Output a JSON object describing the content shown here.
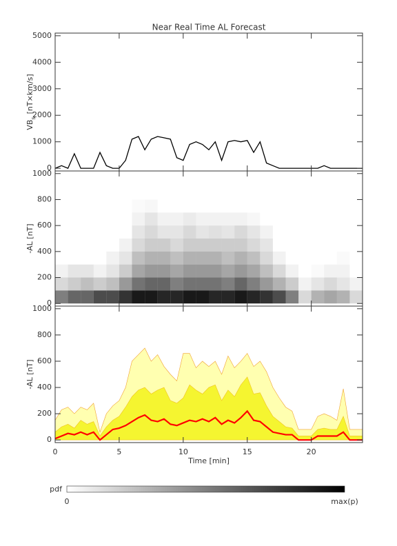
{
  "chart_data": [
    {
      "type": "line",
      "title": "Near Real Time AL Forecast",
      "ylabel": "VB",
      "ylabel_sub": "s",
      "ylabel_unit": "[nT×km/s]",
      "xlim": [
        0,
        24
      ],
      "xticks": [
        0,
        5,
        10,
        15,
        20
      ],
      "xtick_labels": false,
      "ylim": [
        -100,
        5100
      ],
      "yticks": [
        0,
        1000,
        2000,
        3000,
        4000,
        5000
      ],
      "x": [
        0,
        0.5,
        1,
        1.5,
        2,
        2.5,
        3,
        3.5,
        4,
        4.5,
        5,
        5.5,
        6,
        6.5,
        7,
        7.5,
        8,
        8.5,
        9,
        9.5,
        10,
        10.5,
        11,
        11.5,
        12,
        12.5,
        13,
        13.5,
        14,
        14.5,
        15,
        15.5,
        16,
        16.5,
        17,
        17.5,
        18,
        18.5,
        19,
        19.5,
        20,
        20.5,
        21,
        21.5,
        22,
        22.5,
        23,
        23.5,
        24
      ],
      "series": [
        {
          "color": "#000000",
          "values": [
            0,
            100,
            0,
            550,
            0,
            0,
            0,
            600,
            100,
            0,
            0,
            300,
            1100,
            1200,
            700,
            1100,
            1200,
            1150,
            1100,
            400,
            300,
            900,
            1000,
            900,
            700,
            1000,
            300,
            1000,
            1050,
            1000,
            1050,
            600,
            1000,
            200,
            100,
            0,
            0,
            0,
            0,
            0,
            0,
            0,
            100,
            0,
            0,
            0,
            0,
            0,
            0
          ]
        }
      ]
    },
    {
      "type": "heatmap",
      "ylabel": "-AL [nT]",
      "color": "#000000",
      "xlim": [
        0,
        24
      ],
      "xticks": [
        0,
        5,
        10,
        15,
        20
      ],
      "xtick_labels": false,
      "ylim": [
        -20,
        1020
      ],
      "yticks": [
        0,
        200,
        400,
        600,
        800,
        1000
      ],
      "xbins": [
        0,
        1,
        2,
        3,
        4,
        5,
        6,
        7,
        8,
        9,
        10,
        11,
        12,
        13,
        14,
        15,
        16,
        17,
        18,
        19,
        20,
        21,
        22,
        23,
        24
      ],
      "ybins": [
        0,
        100,
        200,
        300,
        400,
        500,
        600,
        700,
        800
      ],
      "z": [
        [
          0.5,
          0.15,
          0.05,
          0,
          0,
          0,
          0,
          0
        ],
        [
          0.6,
          0.2,
          0.1,
          0,
          0,
          0,
          0,
          0
        ],
        [
          0.6,
          0.25,
          0.1,
          0,
          0,
          0,
          0,
          0
        ],
        [
          0.7,
          0.2,
          0.05,
          0,
          0,
          0,
          0,
          0
        ],
        [
          0.7,
          0.25,
          0.1,
          0.05,
          0,
          0,
          0,
          0
        ],
        [
          0.8,
          0.4,
          0.2,
          0.1,
          0.05,
          0,
          0,
          0
        ],
        [
          0.9,
          0.55,
          0.35,
          0.25,
          0.15,
          0.1,
          0.05,
          0.02
        ],
        [
          0.9,
          0.6,
          0.4,
          0.3,
          0.2,
          0.15,
          0.1,
          0.03
        ],
        [
          0.85,
          0.6,
          0.4,
          0.3,
          0.2,
          0.1,
          0.05,
          0
        ],
        [
          0.85,
          0.5,
          0.35,
          0.25,
          0.15,
          0.1,
          0.05,
          0
        ],
        [
          0.9,
          0.55,
          0.4,
          0.3,
          0.2,
          0.15,
          0.08,
          0
        ],
        [
          0.9,
          0.55,
          0.4,
          0.3,
          0.2,
          0.1,
          0.05,
          0
        ],
        [
          0.85,
          0.55,
          0.4,
          0.3,
          0.2,
          0.12,
          0.05,
          0
        ],
        [
          0.85,
          0.5,
          0.35,
          0.25,
          0.2,
          0.1,
          0.05,
          0
        ],
        [
          0.9,
          0.6,
          0.4,
          0.3,
          0.2,
          0.15,
          0.05,
          0
        ],
        [
          0.85,
          0.5,
          0.35,
          0.25,
          0.15,
          0.1,
          0.03,
          0
        ],
        [
          0.8,
          0.4,
          0.25,
          0.15,
          0.1,
          0.05,
          0,
          0
        ],
        [
          0.7,
          0.3,
          0.15,
          0.05,
          0,
          0,
          0,
          0
        ],
        [
          0.5,
          0.2,
          0.05,
          0,
          0,
          0,
          0,
          0
        ],
        [
          0.15,
          0.05,
          0,
          0,
          0,
          0,
          0,
          0
        ],
        [
          0.3,
          0.1,
          0.02,
          0,
          0,
          0,
          0,
          0
        ],
        [
          0.35,
          0.15,
          0.05,
          0,
          0,
          0,
          0,
          0
        ],
        [
          0.3,
          0.1,
          0.05,
          0.02,
          0,
          0,
          0,
          0
        ],
        [
          0.15,
          0.05,
          0,
          0,
          0,
          0,
          0,
          0
        ]
      ]
    },
    {
      "type": "area",
      "ylabel": "-AL [nT]",
      "xlabel": "Time [min]",
      "xlim": [
        0,
        24
      ],
      "xticks": [
        0,
        5,
        10,
        15,
        20
      ],
      "xtick_labels": true,
      "ylim": [
        -20,
        1020
      ],
      "yticks": [
        0,
        200,
        400,
        600,
        800,
        1000
      ],
      "x": [
        0,
        0.5,
        1,
        1.5,
        2,
        2.5,
        3,
        3.5,
        4,
        4.5,
        5,
        5.5,
        6,
        6.5,
        7,
        7.5,
        8,
        8.5,
        9,
        9.5,
        10,
        10.5,
        11,
        11.5,
        12,
        12.5,
        13,
        13.5,
        14,
        14.5,
        15,
        15.5,
        16,
        16.5,
        17,
        17.5,
        18,
        18.5,
        19,
        19.5,
        20,
        20.5,
        21,
        21.5,
        22,
        22.5,
        23,
        23.5,
        24
      ],
      "series": [
        {
          "color": "#ffffb0",
          "stroke": "#f0a030",
          "values": [
            150,
            230,
            250,
            200,
            250,
            230,
            280,
            60,
            200,
            260,
            300,
            400,
            600,
            650,
            700,
            600,
            650,
            560,
            500,
            450,
            660,
            660,
            550,
            600,
            560,
            600,
            500,
            640,
            550,
            600,
            660,
            560,
            600,
            520,
            400,
            320,
            250,
            220,
            80,
            80,
            80,
            180,
            200,
            180,
            150,
            390,
            80,
            80,
            80
          ]
        },
        {
          "color": "#f5f530",
          "stroke": "#f0c020",
          "values": [
            60,
            100,
            120,
            90,
            150,
            120,
            140,
            30,
            100,
            150,
            180,
            250,
            330,
            380,
            400,
            350,
            380,
            400,
            300,
            280,
            320,
            420,
            380,
            350,
            400,
            420,
            300,
            380,
            330,
            420,
            480,
            350,
            360,
            260,
            180,
            140,
            100,
            90,
            30,
            30,
            30,
            80,
            90,
            80,
            80,
            180,
            30,
            30,
            30
          ]
        },
        {
          "color": "#ff0000",
          "line": true,
          "values": [
            10,
            30,
            50,
            40,
            60,
            40,
            60,
            0,
            40,
            80,
            90,
            110,
            140,
            170,
            190,
            150,
            140,
            160,
            120,
            110,
            130,
            150,
            140,
            160,
            140,
            170,
            120,
            150,
            130,
            170,
            220,
            150,
            140,
            100,
            60,
            50,
            40,
            40,
            0,
            0,
            0,
            30,
            30,
            30,
            30,
            60,
            0,
            0,
            0
          ]
        }
      ]
    }
  ],
  "colorbar": {
    "label": "pdf",
    "min_label": "0",
    "max_label": "max(p)"
  }
}
